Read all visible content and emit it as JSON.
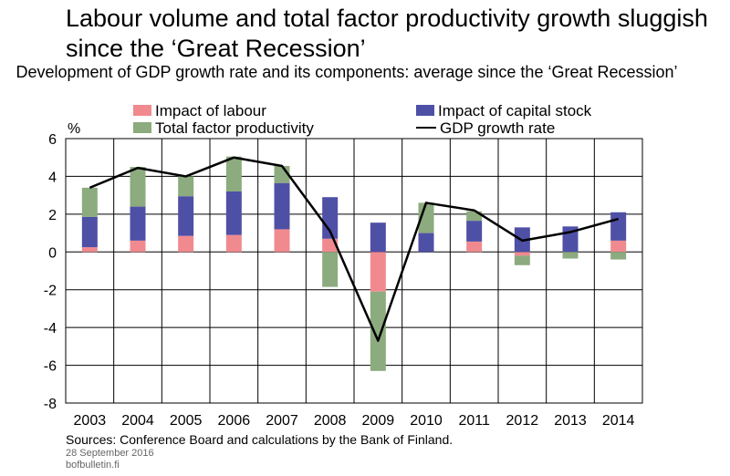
{
  "chart_data": {
    "type": "bar",
    "title": "Labour volume and total factor productivity growth sluggish since the ‘Great Recession’",
    "subtitle": "Development of GDP growth rate and its components: average since the ‘Great Recession’",
    "ylabel": "%",
    "ylim": [
      -8,
      6
    ],
    "yticks": [
      "6",
      "4",
      "2",
      "0",
      "-2",
      "-4",
      "-6",
      "-8"
    ],
    "categories": [
      "2003",
      "2004",
      "2005",
      "2006",
      "2007",
      "2008",
      "2009",
      "2010",
      "2011",
      "2012",
      "2013",
      "2014"
    ],
    "series": [
      {
        "name": "Impact of labour",
        "kind": "bar",
        "color": "#f08a8f",
        "values": [
          0.25,
          0.6,
          0.85,
          0.9,
          1.2,
          0.7,
          -2.1,
          0.0,
          0.55,
          -0.2,
          0.0,
          0.6
        ]
      },
      {
        "name": "Impact of capital stock",
        "kind": "bar",
        "color": "#4e50a6",
        "values": [
          1.6,
          1.8,
          2.1,
          2.3,
          2.45,
          2.2,
          1.55,
          1.0,
          1.1,
          1.3,
          1.35,
          1.5
        ]
      },
      {
        "name": "Total factor productivity",
        "kind": "bar",
        "color": "#8cab7e",
        "values": [
          1.55,
          2.1,
          1.05,
          1.85,
          0.9,
          -1.85,
          -4.2,
          1.6,
          0.5,
          -0.5,
          -0.35,
          -0.4
        ]
      },
      {
        "name": "GDP growth rate",
        "kind": "line",
        "color": "#000000",
        "values": [
          3.4,
          4.45,
          4.0,
          5.0,
          4.55,
          1.1,
          -4.7,
          2.6,
          2.2,
          0.6,
          1.05,
          1.75
        ]
      }
    ],
    "grid": true,
    "legend": "top"
  },
  "footer": {
    "source": "Sources: Conference Board and calculations by the Bank of Finland.",
    "date": "28 September 2016",
    "site": "bofbulletin.fi"
  }
}
